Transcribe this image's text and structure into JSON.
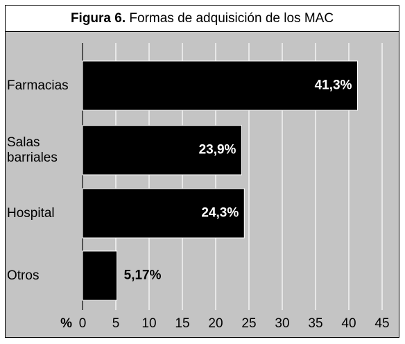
{
  "chart_data": {
    "type": "bar",
    "orientation": "horizontal",
    "title_label": "Figura 6.",
    "title": "Formas de adquisición de los MAC",
    "categories": [
      "Farmacias",
      "Salas barriales",
      "Hospital",
      "Otros"
    ],
    "values": [
      41.3,
      23.9,
      24.3,
      5.17
    ],
    "value_labels": [
      "41,3%",
      "23,9%",
      "24,3%",
      "5,17%"
    ],
    "color": "#000000",
    "x_label": "%",
    "xlim": [
      0,
      45
    ],
    "xticks": [
      0,
      5,
      10,
      15,
      20,
      25,
      30,
      35,
      40,
      45
    ],
    "grid": true
  }
}
